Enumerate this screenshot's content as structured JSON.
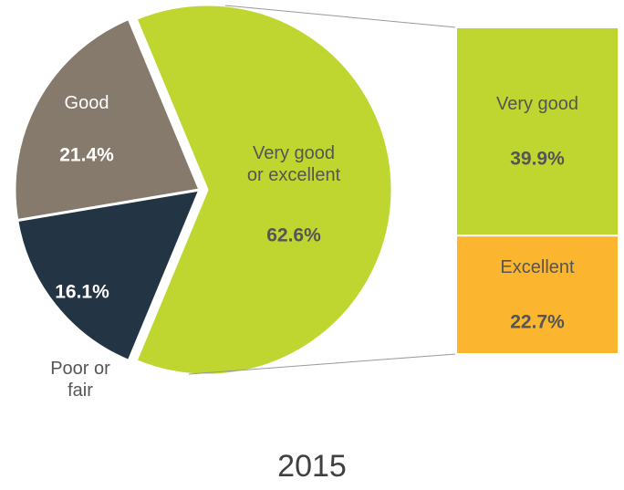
{
  "chart_data": {
    "type": "pie_of_bar",
    "title": "2015",
    "pie": {
      "labels": [
        "Very good or excellent",
        "Good",
        "Poor or fair"
      ],
      "values": [
        62.6,
        21.4,
        16.1
      ],
      "value_labels": [
        "62.6%",
        "21.4%",
        "16.1%"
      ],
      "colors": [
        "#bfd630",
        "#857a6b",
        "#233545"
      ]
    },
    "bar": {
      "labels": [
        "Very good",
        "Excellent"
      ],
      "values": [
        39.9,
        22.7
      ],
      "value_labels": [
        "39.9%",
        "22.7%"
      ],
      "colors": [
        "#bfd630",
        "#fbb52f"
      ]
    }
  }
}
